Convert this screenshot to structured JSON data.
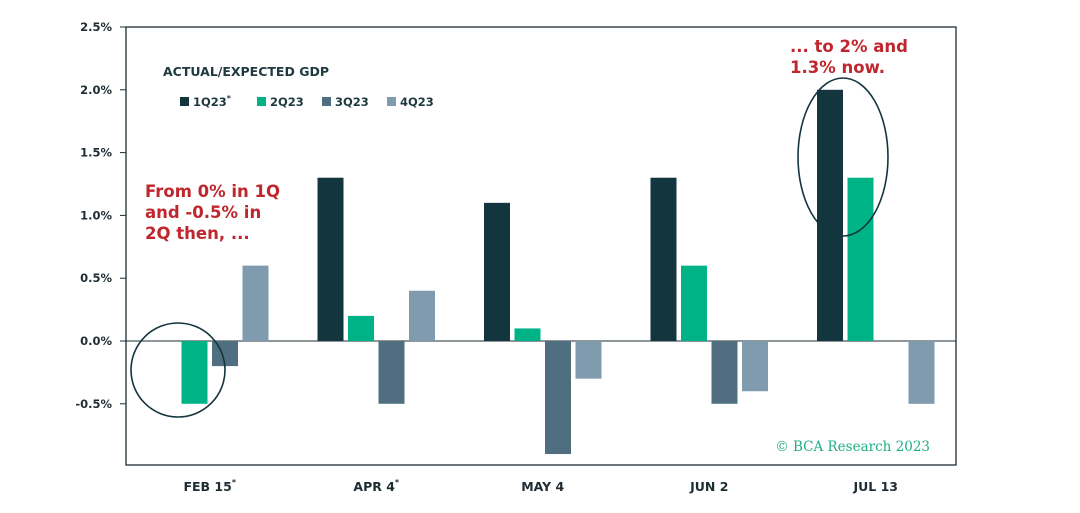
{
  "chart_data": {
    "type": "bar",
    "title": "ACTUAL/EXPECTED GDP",
    "categories": [
      {
        "label": "FEB 15",
        "sup": "*"
      },
      {
        "label": "APR 4",
        "sup": "*"
      },
      {
        "label": "MAY 4",
        "sup": ""
      },
      {
        "label": "JUN 2",
        "sup": ""
      },
      {
        "label": "JUL 13",
        "sup": ""
      }
    ],
    "series": [
      {
        "name": "1Q23",
        "sup": "*",
        "color": "#13363e",
        "values": [
          0.0,
          1.3,
          1.1,
          1.3,
          2.0
        ]
      },
      {
        "name": "2Q23",
        "sup": "",
        "color": "#00b386",
        "values": [
          -0.5,
          0.2,
          0.1,
          0.6,
          1.3
        ]
      },
      {
        "name": "3Q23",
        "sup": "",
        "color": "#4f6f81",
        "values": [
          -0.2,
          -0.5,
          -0.9,
          -0.5,
          null
        ]
      },
      {
        "name": "4Q23",
        "sup": "",
        "color": "#7f9bad",
        "values": [
          0.6,
          0.4,
          -0.3,
          -0.4,
          -0.5
        ]
      }
    ],
    "ylim": [
      -1.0,
      2.5
    ],
    "yticks": [
      "2.5%",
      "2.0%",
      "1.5%",
      "1.0%",
      "0.5%",
      "0.0%",
      "-0.5%"
    ],
    "ytick_values": [
      2.5,
      2.0,
      1.5,
      1.0,
      0.5,
      0.0,
      -0.5
    ],
    "grid": false,
    "legend_placement": "top-left",
    "annotations": [
      {
        "lines": [
          "From 0% in 1Q",
          "and -0.5% in",
          "2Q then, ..."
        ]
      },
      {
        "lines": [
          "... to 2% and",
          "1.3% now."
        ]
      }
    ],
    "watermark": "© BCA Research 2023"
  }
}
